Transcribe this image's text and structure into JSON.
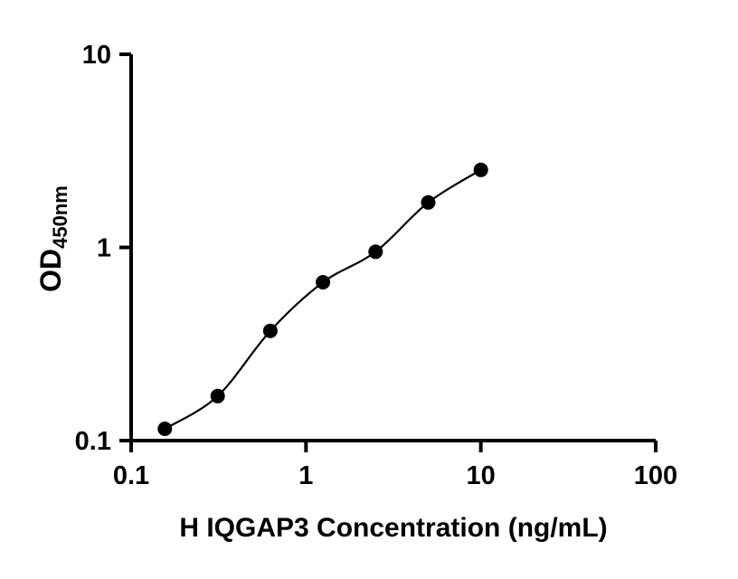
{
  "chart_data": {
    "type": "scatter",
    "title": "",
    "xlabel": "H IQGAP3 Concentration (ng/mL)",
    "ylabel": "OD450nm",
    "ylabel_main": "OD",
    "ylabel_sub": "450nm",
    "x": [
      0.156,
      0.3125,
      0.625,
      1.25,
      2.5,
      5,
      10
    ],
    "y": [
      0.115,
      0.17,
      0.37,
      0.66,
      0.95,
      1.71,
      2.52
    ],
    "xscale": "log",
    "yscale": "log",
    "xlim": [
      0.1,
      100
    ],
    "ylim": [
      0.1,
      10
    ],
    "x_ticks": [
      0.1,
      1,
      10,
      100
    ],
    "x_tick_labels": [
      "0.1",
      "1",
      "10",
      "100"
    ],
    "y_ticks": [
      0.1,
      1,
      10
    ],
    "y_tick_labels": [
      "0.1",
      "1",
      "10"
    ],
    "grid": false,
    "legend": null,
    "marker": "circle",
    "marker_color": "#000000",
    "line_color": "#000000",
    "axis_color": "#000000",
    "background_color": "#ffffff"
  }
}
